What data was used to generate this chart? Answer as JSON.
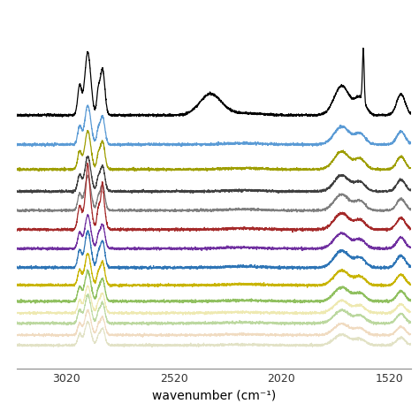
{
  "x_min": 3250,
  "x_max": 1420,
  "x_ticks": [
    3020,
    2520,
    2020,
    1520
  ],
  "xlabel": "wavenumber (cm⁻¹)",
  "background_color": "#ffffff",
  "line_colors": [
    "#000000",
    "#5b9bd5",
    "#9e9e00",
    "#404040",
    "#7f7f7f",
    "#a52a2a",
    "#7030a0",
    "#2e75b6",
    "#c8b400",
    "#90c060",
    "#e8e090",
    "#a0c878",
    "#e8c8a0",
    "#d0d0a0"
  ],
  "offsets": [
    1.45,
    1.25,
    1.08,
    0.93,
    0.8,
    0.67,
    0.54,
    0.41,
    0.29,
    0.18,
    0.1,
    0.03,
    -0.05,
    -0.12
  ],
  "line_widths": [
    0.9,
    0.9,
    0.9,
    0.9,
    0.9,
    0.9,
    0.9,
    0.9,
    0.9,
    0.9,
    0.8,
    0.8,
    0.8,
    0.8
  ],
  "alphas": [
    1.0,
    1.0,
    1.0,
    1.0,
    1.0,
    1.0,
    1.0,
    1.0,
    1.0,
    1.0,
    0.7,
    0.7,
    0.65,
    0.6
  ]
}
